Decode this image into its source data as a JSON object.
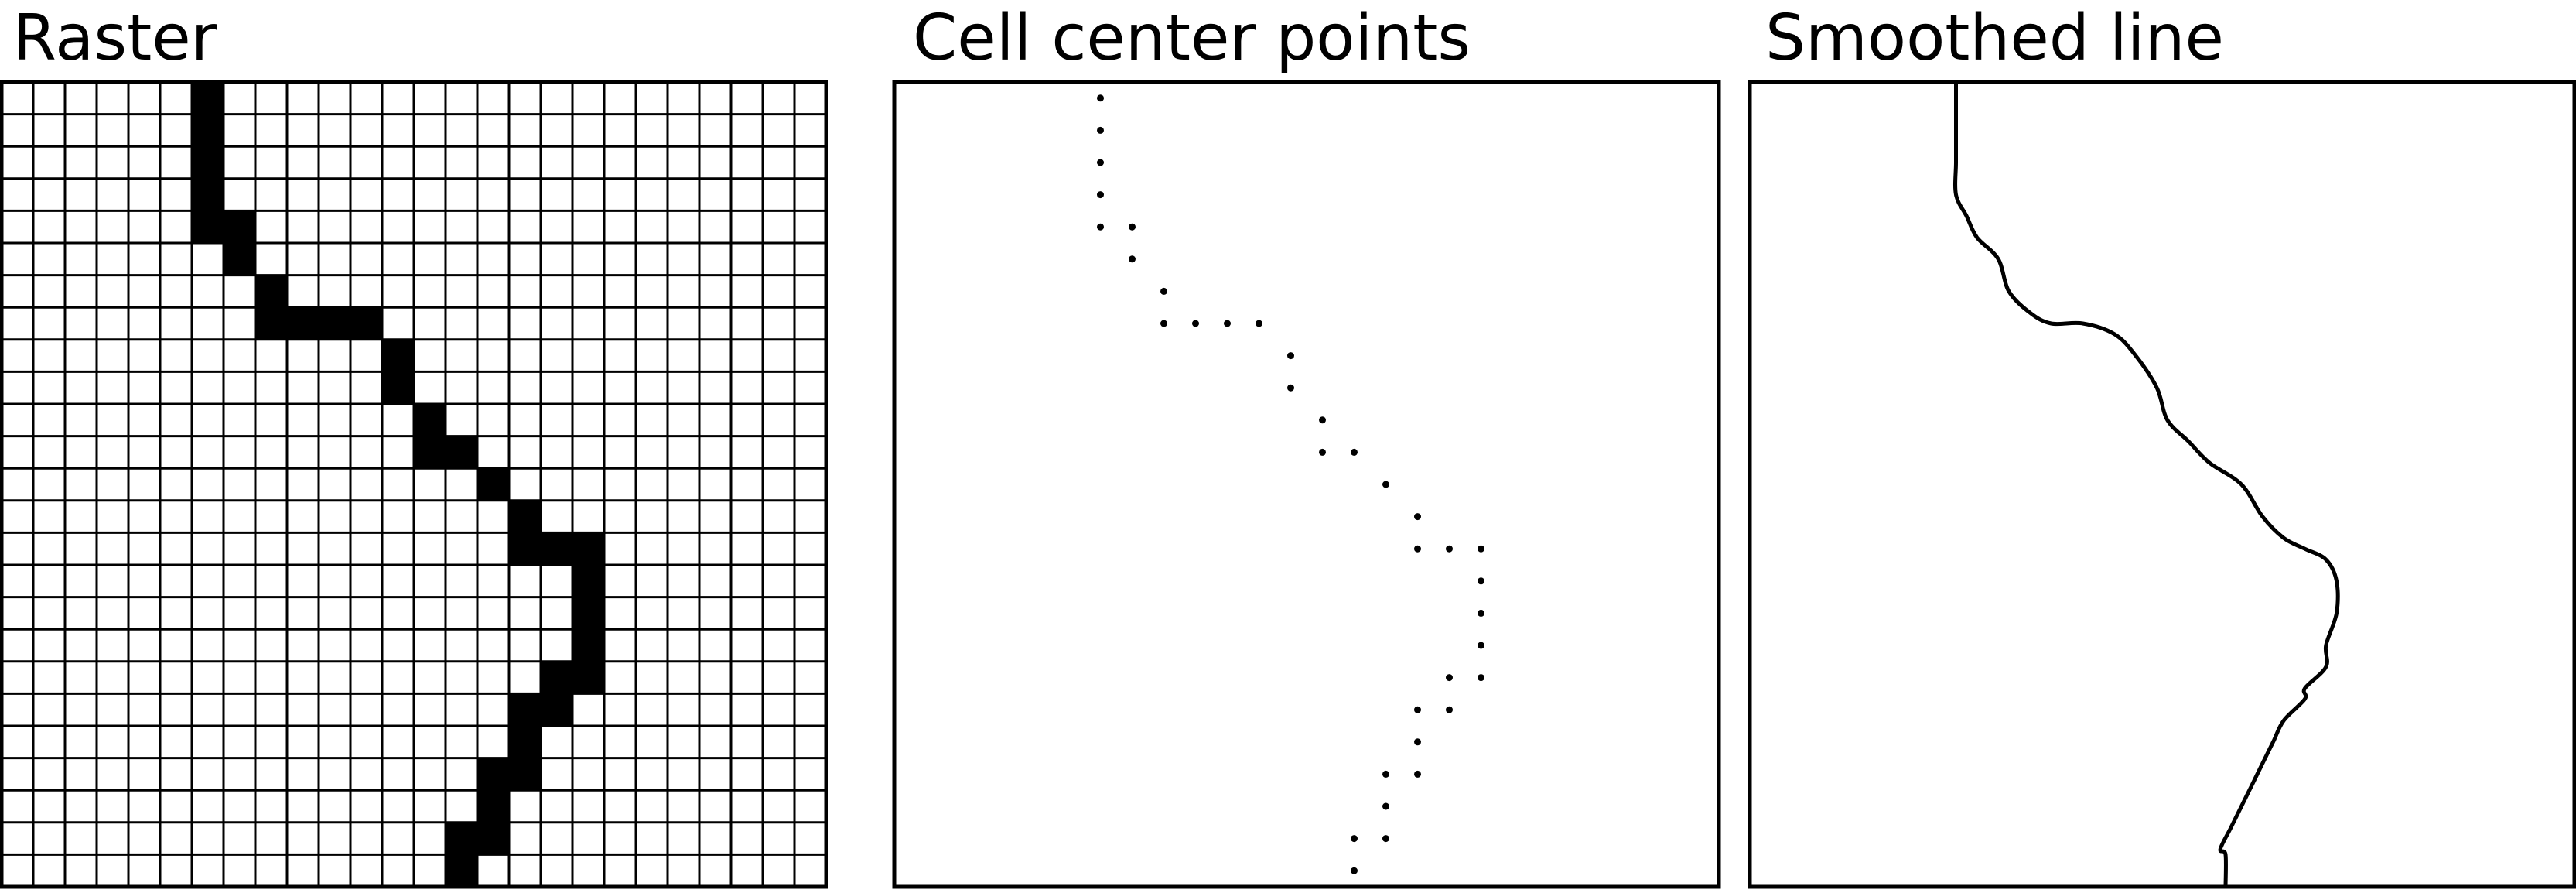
{
  "panels": {
    "raster": {
      "title": "Raster"
    },
    "points": {
      "title": "Cell center points"
    },
    "smooth": {
      "title": "Smoothed line"
    }
  },
  "grid": {
    "columns": 26,
    "rows": 25
  },
  "raster_cells": [
    [
      6,
      0
    ],
    [
      6,
      1
    ],
    [
      6,
      2
    ],
    [
      6,
      3
    ],
    [
      6,
      4
    ],
    [
      7,
      4
    ],
    [
      7,
      5
    ],
    [
      8,
      6
    ],
    [
      8,
      7
    ],
    [
      9,
      7
    ],
    [
      10,
      7
    ],
    [
      11,
      7
    ],
    [
      12,
      8
    ],
    [
      12,
      9
    ],
    [
      13,
      10
    ],
    [
      13,
      11
    ],
    [
      14,
      11
    ],
    [
      15,
      12
    ],
    [
      16,
      13
    ],
    [
      16,
      14
    ],
    [
      17,
      14
    ],
    [
      18,
      14
    ],
    [
      18,
      15
    ],
    [
      18,
      16
    ],
    [
      18,
      17
    ],
    [
      17,
      18
    ],
    [
      18,
      18
    ],
    [
      16,
      19
    ],
    [
      17,
      19
    ],
    [
      16,
      20
    ],
    [
      15,
      21
    ],
    [
      16,
      21
    ],
    [
      15,
      22
    ],
    [
      14,
      23
    ],
    [
      15,
      23
    ],
    [
      14,
      24
    ]
  ],
  "colors": {
    "ink": "#000000",
    "background": "#ffffff"
  }
}
